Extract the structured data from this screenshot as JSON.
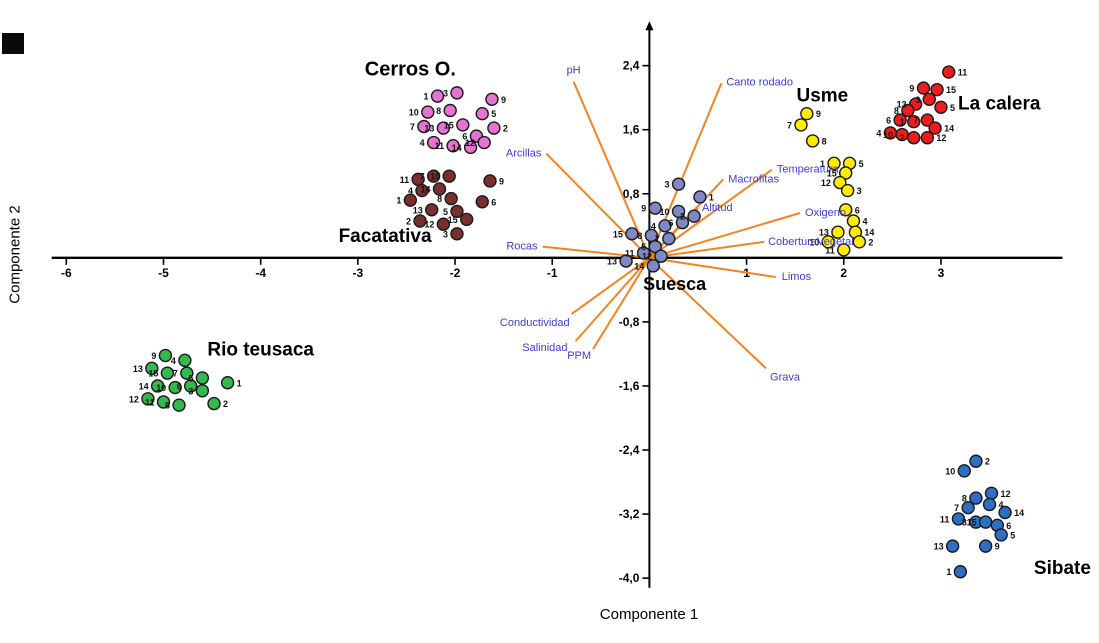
{
  "chart_data": {
    "type": "scatter",
    "title": "",
    "xlabel": "Componente 1",
    "ylabel": "Componente 2",
    "xlim": [
      -6.6,
      4.4
    ],
    "ylim": [
      -4.56,
      2.97
    ],
    "grid": false,
    "vector_color": "#f5831f",
    "vector_label_color": "#3c3ccf",
    "x_ticks": [
      {
        "v": -6,
        "label": "-6"
      },
      {
        "v": -5,
        "label": "-5"
      },
      {
        "v": -4,
        "label": "-4"
      },
      {
        "v": -3,
        "label": "-3"
      },
      {
        "v": -2,
        "label": "-2"
      },
      {
        "v": -1,
        "label": "-1"
      },
      {
        "v": 1,
        "label": "1"
      },
      {
        "v": 2,
        "label": "2"
      },
      {
        "v": 3,
        "label": "3"
      }
    ],
    "y_ticks": [
      {
        "v": 2.4,
        "label": "2,4"
      },
      {
        "v": 1.6,
        "label": "1,6"
      },
      {
        "v": 0.8,
        "label": "0,8"
      },
      {
        "v": -0.8,
        "label": "-0,8"
      },
      {
        "v": -1.6,
        "label": "-1,6"
      },
      {
        "v": -2.4,
        "label": "-2,4"
      },
      {
        "v": -3.2,
        "label": "-3,2"
      },
      {
        "v": -4.0,
        "label": "-4,0"
      }
    ],
    "vectors": [
      {
        "name": "pH",
        "x": -0.78,
        "y": 2.2,
        "anchor": "middle",
        "dx": 0,
        "dy": -8
      },
      {
        "name": "Canto rodado",
        "x": 0.74,
        "y": 2.18,
        "anchor": "start",
        "dx": 5,
        "dy": 2
      },
      {
        "name": "Arcillas",
        "x": -1.06,
        "y": 1.3,
        "anchor": "end",
        "dx": -5,
        "dy": 3
      },
      {
        "name": "Macrofitas",
        "x": 0.76,
        "y": 0.98,
        "anchor": "start",
        "dx": 5,
        "dy": 3
      },
      {
        "name": "Altitud",
        "x": 0.5,
        "y": 0.62,
        "anchor": "start",
        "dx": 4,
        "dy": 3
      },
      {
        "name": "Temperatura",
        "x": 1.26,
        "y": 1.1,
        "anchor": "start",
        "dx": 5,
        "dy": 3
      },
      {
        "name": "Oxigeno",
        "x": 1.55,
        "y": 0.56,
        "anchor": "start",
        "dx": 5,
        "dy": 3
      },
      {
        "name": "CoberturaVegetal",
        "x": 1.18,
        "y": 0.2,
        "anchor": "start",
        "dx": 4,
        "dy": 3
      },
      {
        "name": "Limos",
        "x": 1.3,
        "y": -0.24,
        "anchor": "start",
        "dx": 6,
        "dy": 3
      },
      {
        "name": "Rocas",
        "x": -1.1,
        "y": 0.14,
        "anchor": "end",
        "dx": -5,
        "dy": 3
      },
      {
        "name": "Conductividad",
        "x": -0.8,
        "y": -0.7,
        "anchor": "end",
        "dx": -2,
        "dy": 12
      },
      {
        "name": "Salinidad",
        "x": -0.76,
        "y": -1.04,
        "anchor": "end",
        "dx": -8,
        "dy": 10
      },
      {
        "name": "PPM",
        "x": -0.58,
        "y": -1.14,
        "anchor": "end",
        "dx": -2,
        "dy": 10
      },
      {
        "name": "Grava",
        "x": 1.2,
        "y": -1.38,
        "anchor": "start",
        "dx": 4,
        "dy": 12
      }
    ],
    "groups": [
      {
        "name": "Cerros O.",
        "color": "#e673d2",
        "label": {
          "x": -2.46,
          "y": 2.28,
          "size": 20
        },
        "points": [
          {
            "n": "1",
            "x": -2.18,
            "y": 2.02
          },
          {
            "n": "3",
            "x": -1.98,
            "y": 2.06
          },
          {
            "n": "9",
            "x": -1.62,
            "y": 1.98,
            "s": "r"
          },
          {
            "n": "10",
            "x": -2.28,
            "y": 1.82
          },
          {
            "n": "8",
            "x": -2.05,
            "y": 1.84
          },
          {
            "n": "5",
            "x": -1.72,
            "y": 1.8,
            "s": "r"
          },
          {
            "n": "7",
            "x": -2.32,
            "y": 1.64
          },
          {
            "n": "15",
            "x": -1.92,
            "y": 1.66
          },
          {
            "n": "13",
            "x": -2.12,
            "y": 1.62
          },
          {
            "n": "2",
            "x": -1.6,
            "y": 1.62,
            "s": "r"
          },
          {
            "n": "6",
            "x": -1.78,
            "y": 1.52
          },
          {
            "n": "4",
            "x": -2.22,
            "y": 1.44
          },
          {
            "n": "11",
            "x": -2.02,
            "y": 1.4
          },
          {
            "n": "14",
            "x": -1.84,
            "y": 1.38
          },
          {
            "n": "12",
            "x": -1.7,
            "y": 1.44
          }
        ]
      },
      {
        "name": "Facatativa",
        "color": "#7a2e2e",
        "label": {
          "x": -2.72,
          "y": 0.2,
          "size": 19
        },
        "points": [
          {
            "n": "11",
            "x": -2.38,
            "y": 0.98
          },
          {
            "n": "7",
            "x": -2.22,
            "y": 1.02
          },
          {
            "n": "10",
            "x": -2.06,
            "y": 1.02
          },
          {
            "n": "9",
            "x": -1.64,
            "y": 0.96,
            "s": "r"
          },
          {
            "n": "4",
            "x": -2.34,
            "y": 0.84
          },
          {
            "n": "14",
            "x": -2.16,
            "y": 0.86
          },
          {
            "n": "1",
            "x": -2.46,
            "y": 0.72
          },
          {
            "n": "8",
            "x": -2.04,
            "y": 0.74
          },
          {
            "n": "13",
            "x": -2.24,
            "y": 0.6
          },
          {
            "n": "5",
            "x": -1.98,
            "y": 0.58
          },
          {
            "n": "6",
            "x": -1.72,
            "y": 0.7,
            "s": "r"
          },
          {
            "n": "2",
            "x": -2.36,
            "y": 0.46
          },
          {
            "n": "12",
            "x": -2.12,
            "y": 0.42
          },
          {
            "n": "15",
            "x": -1.88,
            "y": 0.48
          },
          {
            "n": "3",
            "x": -1.98,
            "y": 0.3
          }
        ]
      },
      {
        "name": "Rio teusaca",
        "color": "#33b94d",
        "label": {
          "x": -4.0,
          "y": -1.22,
          "size": 19
        },
        "points": [
          {
            "n": "9",
            "x": -4.98,
            "y": -1.22
          },
          {
            "n": "4",
            "x": -4.78,
            "y": -1.28
          },
          {
            "n": "13",
            "x": -5.12,
            "y": -1.38
          },
          {
            "n": "15",
            "x": -4.96,
            "y": -1.44
          },
          {
            "n": "7",
            "x": -4.76,
            "y": -1.44
          },
          {
            "n": "5",
            "x": -4.6,
            "y": -1.5
          },
          {
            "n": "1",
            "x": -4.34,
            "y": -1.56,
            "s": "r"
          },
          {
            "n": "6",
            "x": -4.72,
            "y": -1.6
          },
          {
            "n": "10",
            "x": -4.88,
            "y": -1.62
          },
          {
            "n": "14",
            "x": -5.06,
            "y": -1.6
          },
          {
            "n": "3",
            "x": -4.6,
            "y": -1.66
          },
          {
            "n": "12",
            "x": -5.16,
            "y": -1.76
          },
          {
            "n": "11",
            "x": -5.0,
            "y": -1.8
          },
          {
            "n": "8",
            "x": -4.84,
            "y": -1.84
          },
          {
            "n": "2",
            "x": -4.48,
            "y": -1.82,
            "s": "r"
          }
        ]
      },
      {
        "name": "Suesca",
        "color": "#7d88c4",
        "label": {
          "x": 0.26,
          "y": -0.4,
          "size": 18
        },
        "points": [
          {
            "n": "3",
            "x": 0.3,
            "y": 0.92
          },
          {
            "n": "1",
            "x": 0.52,
            "y": 0.76,
            "s": "r"
          },
          {
            "n": "9",
            "x": 0.06,
            "y": 0.62
          },
          {
            "n": "10",
            "x": 0.3,
            "y": 0.58
          },
          {
            "n": "2",
            "x": 0.46,
            "y": 0.52
          },
          {
            "n": "6",
            "x": 0.34,
            "y": 0.44
          },
          {
            "n": "4",
            "x": 0.16,
            "y": 0.4
          },
          {
            "n": "15",
            "x": -0.18,
            "y": 0.3
          },
          {
            "n": "8",
            "x": 0.02,
            "y": 0.28
          },
          {
            "n": "7",
            "x": 0.2,
            "y": 0.24
          },
          {
            "n": "5",
            "x": 0.06,
            "y": 0.14
          },
          {
            "n": "11",
            "x": -0.06,
            "y": 0.06
          },
          {
            "n": "12",
            "x": 0.12,
            "y": 0.02
          },
          {
            "n": "13",
            "x": -0.24,
            "y": -0.04
          },
          {
            "n": "14",
            "x": 0.04,
            "y": -0.1
          }
        ]
      },
      {
        "name": "Usme",
        "color": "#ffec00",
        "label": {
          "x": 1.78,
          "y": 1.95,
          "size": 19
        },
        "points": [
          {
            "n": "9",
            "x": 1.62,
            "y": 1.8,
            "s": "r"
          },
          {
            "n": "7",
            "x": 1.56,
            "y": 1.66
          },
          {
            "n": "8",
            "x": 1.68,
            "y": 1.46,
            "s": "r"
          },
          {
            "n": "1",
            "x": 1.9,
            "y": 1.18
          },
          {
            "n": "5",
            "x": 2.06,
            "y": 1.18,
            "s": "r"
          },
          {
            "n": "15",
            "x": 2.02,
            "y": 1.06
          },
          {
            "n": "12",
            "x": 1.96,
            "y": 0.94
          },
          {
            "n": "3",
            "x": 2.04,
            "y": 0.84,
            "s": "r"
          },
          {
            "n": "6",
            "x": 2.02,
            "y": 0.6,
            "s": "r"
          },
          {
            "n": "4",
            "x": 2.1,
            "y": 0.46,
            "s": "r"
          },
          {
            "n": "13",
            "x": 1.94,
            "y": 0.32
          },
          {
            "n": "14",
            "x": 2.12,
            "y": 0.32,
            "s": "r"
          },
          {
            "n": "10",
            "x": 1.84,
            "y": 0.2
          },
          {
            "n": "2",
            "x": 2.16,
            "y": 0.2,
            "s": "r"
          },
          {
            "n": "11",
            "x": 2.0,
            "y": 0.1
          }
        ]
      },
      {
        "name": "La calera",
        "color": "#ee1c1c",
        "label": {
          "x": 3.6,
          "y": 1.85,
          "size": 19
        },
        "points": [
          {
            "n": "11",
            "x": 3.08,
            "y": 2.32,
            "s": "r"
          },
          {
            "n": "9",
            "x": 2.82,
            "y": 2.12
          },
          {
            "n": "15",
            "x": 2.96,
            "y": 2.1,
            "s": "r"
          },
          {
            "n": "3",
            "x": 2.88,
            "y": 1.98
          },
          {
            "n": "13",
            "x": 2.74,
            "y": 1.92
          },
          {
            "n": "5",
            "x": 3.0,
            "y": 1.88,
            "s": "r"
          },
          {
            "n": "8",
            "x": 2.66,
            "y": 1.84
          },
          {
            "n": "6",
            "x": 2.58,
            "y": 1.72
          },
          {
            "n": "1",
            "x": 2.72,
            "y": 1.7
          },
          {
            "n": "7",
            "x": 2.86,
            "y": 1.72
          },
          {
            "n": "14",
            "x": 2.94,
            "y": 1.62,
            "s": "r"
          },
          {
            "n": "4",
            "x": 2.48,
            "y": 1.56
          },
          {
            "n": "10",
            "x": 2.6,
            "y": 1.54
          },
          {
            "n": "2",
            "x": 2.72,
            "y": 1.5
          },
          {
            "n": "12",
            "x": 2.86,
            "y": 1.5,
            "s": "r"
          }
        ]
      },
      {
        "name": "Sibate",
        "color": "#2e6fc4",
        "label": {
          "x": 4.25,
          "y": -3.95,
          "size": 19
        },
        "points": [
          {
            "n": "2",
            "x": 3.36,
            "y": -2.54,
            "s": "r"
          },
          {
            "n": "10",
            "x": 3.24,
            "y": -2.66
          },
          {
            "n": "12",
            "x": 3.52,
            "y": -2.94,
            "s": "r"
          },
          {
            "n": "8",
            "x": 3.36,
            "y": -3.0
          },
          {
            "n": "7",
            "x": 3.28,
            "y": -3.12
          },
          {
            "n": "4",
            "x": 3.5,
            "y": -3.08,
            "s": "r"
          },
          {
            "n": "14",
            "x": 3.66,
            "y": -3.18,
            "s": "r"
          },
          {
            "n": "11",
            "x": 3.18,
            "y": -3.26
          },
          {
            "n": "3",
            "x": 3.36,
            "y": -3.3
          },
          {
            "n": "15",
            "x": 3.46,
            "y": -3.3
          },
          {
            "n": "6",
            "x": 3.58,
            "y": -3.34,
            "s": "r"
          },
          {
            "n": "5",
            "x": 3.62,
            "y": -3.46,
            "s": "r"
          },
          {
            "n": "13",
            "x": 3.12,
            "y": -3.6
          },
          {
            "n": "9",
            "x": 3.46,
            "y": -3.6,
            "s": "r"
          },
          {
            "n": "1",
            "x": 3.2,
            "y": -3.92
          }
        ]
      }
    ]
  }
}
